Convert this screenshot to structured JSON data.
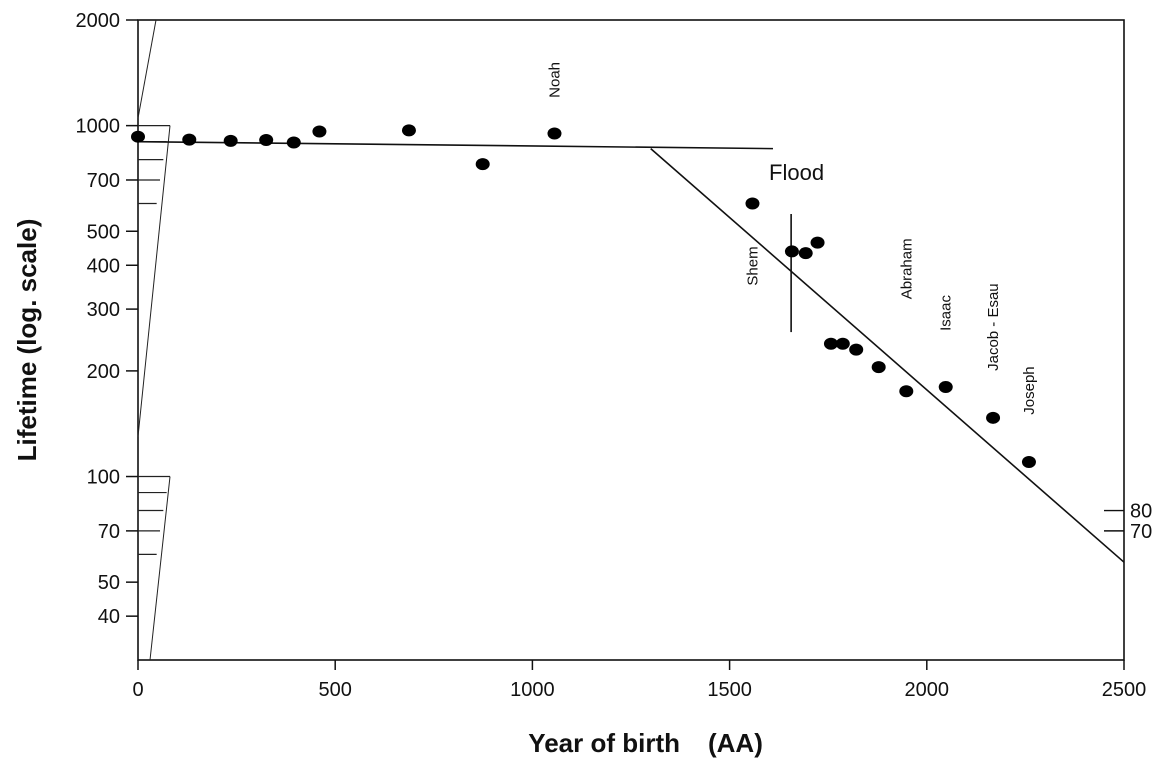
{
  "chart_data": {
    "type": "scatter",
    "title": "",
    "xlabel": "Year of birth",
    "xlabel_unit": "(AA)",
    "ylabel": "Lifetime (log. scale)",
    "xlim": [
      0,
      2500
    ],
    "ylim": [
      30,
      2000
    ],
    "y_scale": "log",
    "grid": false,
    "x_ticks": [
      0,
      500,
      1000,
      1500,
      2000,
      2500
    ],
    "y_ticks": [
      2000,
      1000,
      700,
      500,
      400,
      300,
      200,
      100,
      70,
      50,
      40
    ],
    "right_ticks": [
      "80",
      "70"
    ],
    "right_tick_values": [
      80,
      70
    ],
    "points": [
      {
        "x": 0,
        "y": 930
      },
      {
        "x": 130,
        "y": 912
      },
      {
        "x": 235,
        "y": 905
      },
      {
        "x": 325,
        "y": 910
      },
      {
        "x": 395,
        "y": 895
      },
      {
        "x": 460,
        "y": 962
      },
      {
        "x": 687,
        "y": 969
      },
      {
        "x": 874,
        "y": 777
      },
      {
        "x": 1056,
        "y": 950
      },
      {
        "x": 1558,
        "y": 600
      },
      {
        "x": 1658,
        "y": 438
      },
      {
        "x": 1693,
        "y": 433
      },
      {
        "x": 1723,
        "y": 464
      },
      {
        "x": 1757,
        "y": 239
      },
      {
        "x": 1787,
        "y": 239
      },
      {
        "x": 1821,
        "y": 230
      },
      {
        "x": 1878,
        "y": 205
      },
      {
        "x": 1948,
        "y": 175
      },
      {
        "x": 2048,
        "y": 180
      },
      {
        "x": 2168,
        "y": 147
      },
      {
        "x": 2259,
        "y": 110
      }
    ],
    "trend_lines": [
      {
        "x": [
          0,
          1610
        ],
        "y": [
          900,
          860
        ]
      },
      {
        "x": [
          1300,
          2500
        ],
        "y": [
          860,
          57
        ]
      }
    ],
    "flood_line_x": 1656,
    "annotations": [
      {
        "text": "Noah",
        "x": 1056,
        "y": 1200,
        "rotate": true
      },
      {
        "text": "Flood",
        "x": 1600,
        "y": 700,
        "rotate": false,
        "big": true
      },
      {
        "text": "Shem",
        "x": 1558,
        "y": 350,
        "rotate": true
      },
      {
        "text": "Abraham",
        "x": 1948,
        "y": 320,
        "rotate": true
      },
      {
        "text": "Isaac",
        "x": 2048,
        "y": 260,
        "rotate": true
      },
      {
        "text": "Jacob - Esau",
        "x": 2168,
        "y": 200,
        "rotate": true
      },
      {
        "text": "Joseph",
        "x": 2259,
        "y": 150,
        "rotate": true
      }
    ]
  }
}
